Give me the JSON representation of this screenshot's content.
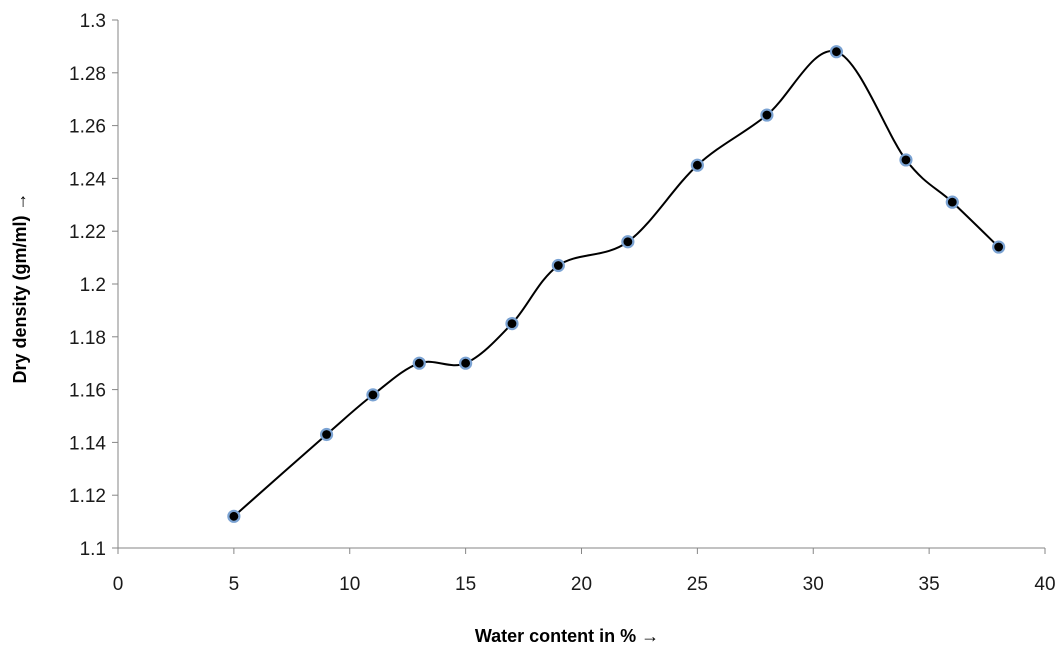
{
  "chart_data": {
    "type": "line",
    "title": "",
    "xlabel": "Water content in % →",
    "ylabel": "Dry  density (gm/ml) →",
    "xlim": [
      0,
      40
    ],
    "ylim": [
      1.1,
      1.3
    ],
    "x_ticks": [
      0,
      5,
      10,
      15,
      20,
      25,
      30,
      35,
      40
    ],
    "y_ticks": [
      1.1,
      1.12,
      1.14,
      1.16,
      1.18,
      1.2,
      1.22,
      1.24,
      1.26,
      1.28,
      1.3
    ],
    "x_tick_labels": [
      "0",
      "5",
      "10",
      "15",
      "20",
      "25",
      "30",
      "35",
      "40"
    ],
    "y_tick_labels": [
      "1.1",
      "1.12",
      "1.14",
      "1.16",
      "1.18",
      "1.2",
      "1.22",
      "1.24",
      "1.26",
      "1.28",
      "1.3"
    ],
    "grid": false,
    "smooth": true,
    "line_color": "#000000",
    "marker_fill": "#000000",
    "marker_edge": "#7ba3d3",
    "series": [
      {
        "x": [
          5,
          9,
          11,
          13,
          15,
          17,
          19,
          22,
          25,
          28,
          31,
          34,
          36,
          38
        ],
        "y": [
          1.112,
          1.143,
          1.158,
          1.17,
          1.17,
          1.185,
          1.207,
          1.216,
          1.245,
          1.264,
          1.288,
          1.247,
          1.231,
          1.214
        ]
      }
    ]
  }
}
